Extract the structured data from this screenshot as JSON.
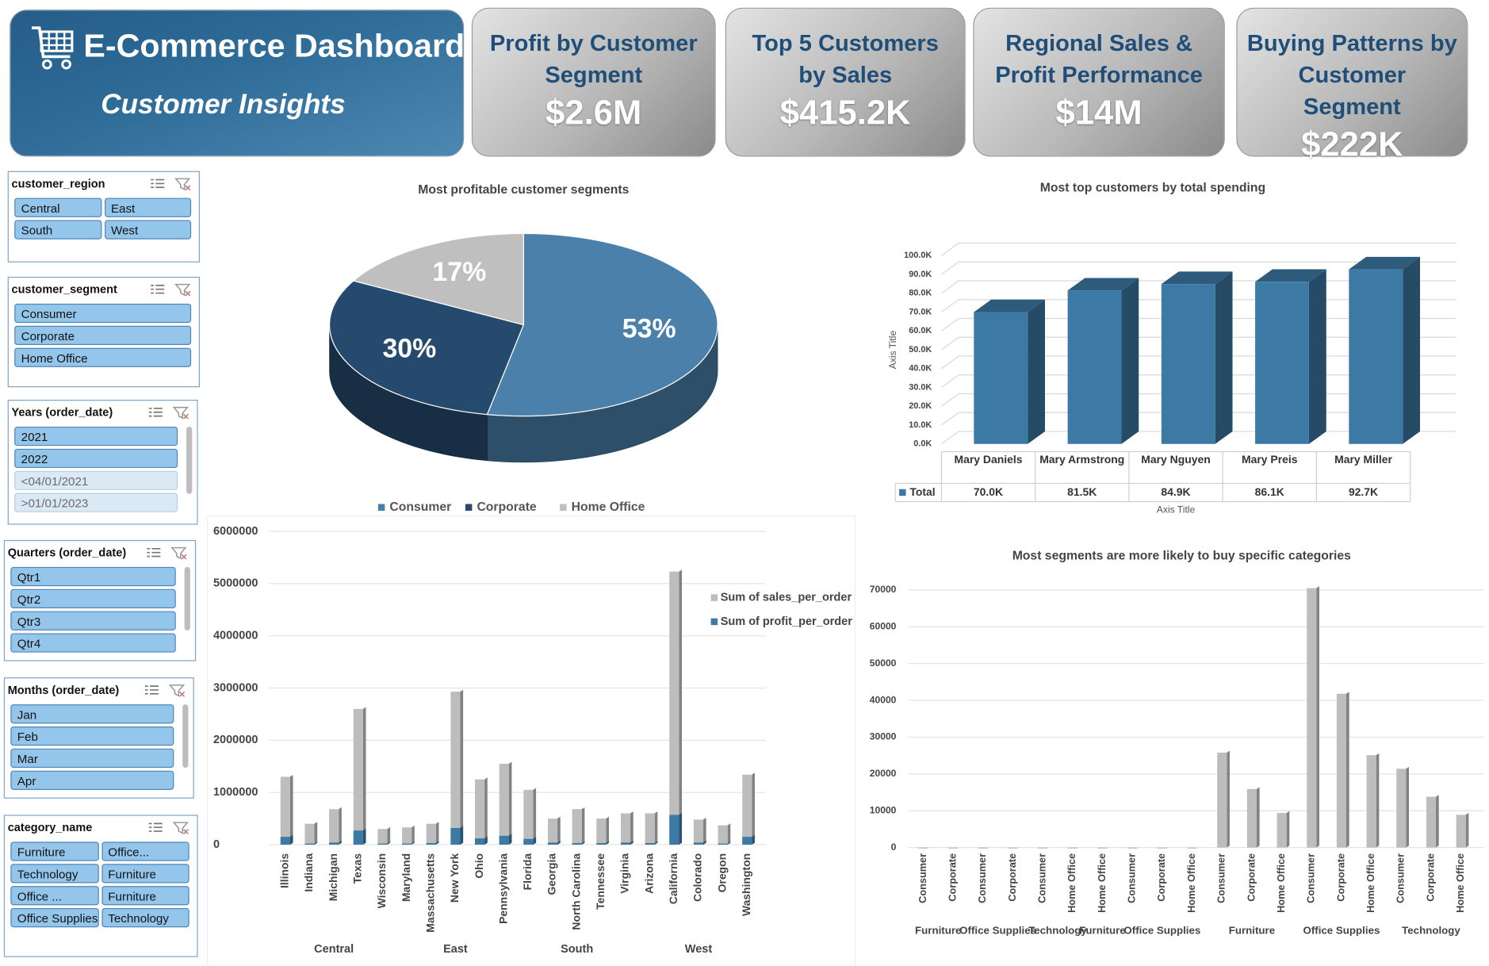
{
  "header": {
    "title": "E-Commerce Dashboard",
    "subtitle": "Customer Insights"
  },
  "kpi_cards": [
    {
      "title": "Profit by Customer Segment",
      "value": "$2.6M"
    },
    {
      "title": "Top 5 Customers by Sales",
      "value": "$415.2K"
    },
    {
      "title": "Regional Sales & Profit Performance",
      "value": "$14M"
    },
    {
      "title": "Buying Patterns by Customer Segment",
      "value": "$222K"
    }
  ],
  "slicers": [
    {
      "title": "customer_region",
      "items": [
        "Central",
        "East",
        "South",
        "West"
      ]
    },
    {
      "title": "customer_segment",
      "items": [
        "Consumer",
        "Corporate",
        "Home Office"
      ]
    },
    {
      "title": "Years (order_date)",
      "items": [
        "2021",
        "2022",
        "<04/01/2021",
        ">01/01/2023"
      ]
    },
    {
      "title": "Quarters (order_date)",
      "items": [
        "Qtr1",
        "Qtr2",
        "Qtr3",
        "Qtr4"
      ]
    },
    {
      "title": "Months (order_date)",
      "items": [
        "Jan",
        "Feb",
        "Mar",
        "Apr"
      ]
    },
    {
      "title": "category_name",
      "items": [
        "Furniture",
        "Office...",
        "Technology",
        "Furniture",
        "Office ...",
        "Furniture",
        "Office Supplies",
        "Technology"
      ]
    }
  ],
  "chart_data": [
    {
      "type": "pie",
      "title": "Most profitable customer segments",
      "categories": [
        "Consumer",
        "Corporate",
        "Home Office"
      ],
      "values": [
        53,
        30,
        17
      ],
      "value_labels": [
        "53%",
        "30%",
        "17%"
      ],
      "colors": [
        "#4a80aa",
        "#264a6e",
        "#bfbfbf"
      ],
      "legend": "bottom"
    },
    {
      "type": "bar",
      "title": "Most top customers by total spending",
      "categories": [
        "Mary Daniels",
        "Mary Armstrong",
        "Mary Nguyen",
        "Mary Preis",
        "Mary Miller"
      ],
      "series": [
        {
          "name": "Total",
          "color": "#3d79a5",
          "values": [
            70000,
            81500,
            84900,
            86100,
            92700
          ],
          "value_labels": [
            "70.0K",
            "81.5K",
            "84.9K",
            "86.1K",
            "92.7K"
          ]
        }
      ],
      "ylim": [
        0,
        100000
      ],
      "yticks": [
        {
          "value": 0,
          "label": "0.0K"
        },
        {
          "value": 10000,
          "label": "10.0K"
        },
        {
          "value": 20000,
          "label": "20.0K"
        },
        {
          "value": 30000,
          "label": "30.0K"
        },
        {
          "value": 40000,
          "label": "40.0K"
        },
        {
          "value": 50000,
          "label": "50.0K"
        },
        {
          "value": 60000,
          "label": "60.0K"
        },
        {
          "value": 70000,
          "label": "70.0K"
        },
        {
          "value": 80000,
          "label": "80.0K"
        },
        {
          "value": 90000,
          "label": "90.0K"
        },
        {
          "value": 100000,
          "label": "100.0K"
        }
      ],
      "x_label": "Axis Title",
      "y_label": "Axis Title",
      "grid": true,
      "data_table": true
    },
    {
      "type": "bar",
      "groups": [
        {
          "label": "Central",
          "categories": [
            "Illinois",
            "Indiana",
            "Michigan",
            "Texas",
            "Wisconsin"
          ]
        },
        {
          "label": "East",
          "categories": [
            "Maryland",
            "Massachusetts",
            "New York",
            "Ohio",
            "Pennsylvania"
          ]
        },
        {
          "label": "South",
          "categories": [
            "Florida",
            "Georgia",
            "North Carolina",
            "Tennessee",
            "Virginia"
          ]
        },
        {
          "label": "West",
          "categories": [
            "Arizona",
            "California",
            "Colorado",
            "Oregon",
            "Washington"
          ]
        }
      ],
      "series": [
        {
          "name": "Sum of sales_per_order",
          "color": "#bdbdbd",
          "values": [
            1300000,
            400000,
            680000,
            2600000,
            300000,
            330000,
            400000,
            2930000,
            1250000,
            1550000,
            1050000,
            500000,
            680000,
            500000,
            600000,
            600000,
            5230000,
            480000,
            370000,
            1340000
          ]
        },
        {
          "name": "Sum of profit_per_order",
          "color": "#3d79a5",
          "values": [
            150000,
            20000,
            40000,
            270000,
            20000,
            20000,
            30000,
            320000,
            120000,
            170000,
            110000,
            40000,
            30000,
            30000,
            40000,
            30000,
            570000,
            40000,
            20000,
            150000
          ]
        }
      ],
      "overlap": true,
      "ylim": [
        0,
        6000000
      ],
      "yticks": [
        0,
        1000000,
        2000000,
        3000000,
        4000000,
        5000000,
        6000000
      ],
      "grid": true,
      "legend": "right"
    },
    {
      "type": "bar",
      "title": "Most segments are more likely to buy specific categories",
      "groups": [
        {
          "label": "Furniture",
          "categories": [
            "Consumer",
            "Corporate"
          ]
        },
        {
          "label": "Office Supplies",
          "categories": [
            "Consumer",
            "Corporate"
          ]
        },
        {
          "label": "Technology",
          "categories": [
            "Consumer",
            "Home Office"
          ]
        },
        {
          "label": "Furniture",
          "categories": [
            "Home Office"
          ]
        },
        {
          "label": "Office Supplies",
          "categories": [
            "Consumer",
            "Corporate",
            "Home Office"
          ]
        },
        {
          "label": "Furniture",
          "categories": [
            "Consumer",
            "Corporate",
            "Home Office"
          ]
        },
        {
          "label": "Office Supplies",
          "categories": [
            "Consumer",
            "Corporate",
            "Home Office"
          ]
        },
        {
          "label": "Technology",
          "categories": [
            "Consumer",
            "Corporate",
            "Home Office"
          ]
        }
      ],
      "values": [
        0,
        0,
        0,
        0,
        0,
        0,
        0,
        0,
        0,
        0,
        25800,
        15900,
        9400,
        70500,
        41800,
        25100,
        21400,
        13800,
        8900
      ],
      "color": "#bdbdbd",
      "ylim": [
        0,
        72000
      ],
      "yticks": [
        0,
        10000,
        20000,
        30000,
        40000,
        50000,
        60000,
        70000
      ],
      "grid": true
    }
  ]
}
